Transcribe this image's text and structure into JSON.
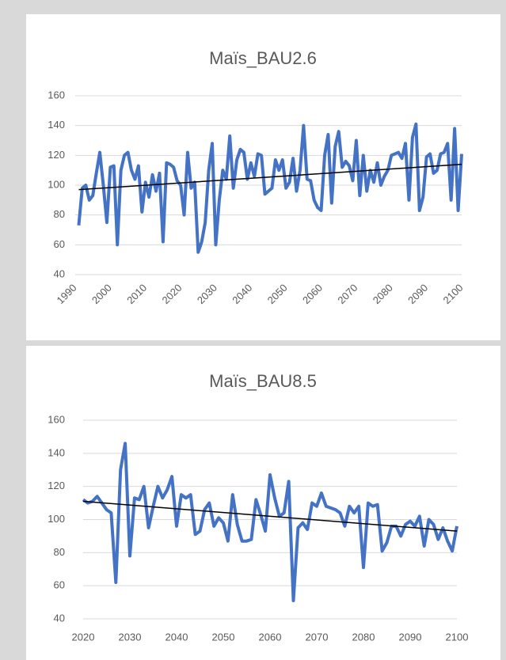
{
  "chart_data": [
    {
      "type": "line",
      "title": "Maïs_BAU2.6",
      "xlim": [
        1990,
        2100
      ],
      "xticks": [
        1990,
        2000,
        2010,
        2020,
        2030,
        2040,
        2050,
        2060,
        2070,
        2080,
        2090,
        2100
      ],
      "ylim": [
        40,
        160
      ],
      "yticks": [
        40,
        60,
        80,
        100,
        120,
        140,
        160
      ],
      "grid": true,
      "x": [
        1991,
        1992,
        1993,
        1994,
        1995,
        1996,
        1997,
        1998,
        1999,
        2000,
        2001,
        2002,
        2003,
        2004,
        2005,
        2006,
        2007,
        2008,
        2009,
        2010,
        2011,
        2012,
        2013,
        2014,
        2015,
        2016,
        2017,
        2018,
        2019,
        2020,
        2021,
        2022,
        2023,
        2024,
        2025,
        2026,
        2027,
        2028,
        2029,
        2030,
        2031,
        2032,
        2033,
        2034,
        2035,
        2036,
        2037,
        2038,
        2039,
        2040,
        2041,
        2042,
        2043,
        2044,
        2045,
        2046,
        2047,
        2048,
        2049,
        2050,
        2051,
        2052,
        2053,
        2054,
        2055,
        2056,
        2057,
        2058,
        2059,
        2060,
        2061,
        2062,
        2063,
        2064,
        2065,
        2066,
        2067,
        2068,
        2069,
        2070,
        2071,
        2072,
        2073,
        2074,
        2075,
        2076,
        2077,
        2078,
        2079,
        2080,
        2081,
        2082,
        2083,
        2084,
        2085,
        2086,
        2087,
        2088,
        2089,
        2090,
        2091,
        2092,
        2093,
        2094,
        2095,
        2096,
        2097,
        2098,
        2099,
        2100
      ],
      "series": [
        {
          "color": "#4472c4",
          "values": [
            73,
            98,
            100,
            90,
            93,
            108,
            122,
            100,
            75,
            112,
            113,
            60,
            110,
            120,
            122,
            110,
            104,
            113,
            82,
            102,
            92,
            107,
            96,
            108,
            62,
            115,
            114,
            112,
            103,
            100,
            80,
            122,
            98,
            102,
            55,
            62,
            75,
            110,
            128,
            60,
            90,
            110,
            104,
            133,
            98,
            117,
            124,
            122,
            104,
            115,
            106,
            121,
            120,
            94,
            96,
            98,
            117,
            110,
            117,
            98,
            102,
            118,
            96,
            110,
            140,
            104,
            103,
            90,
            85,
            83,
            120,
            134,
            88,
            126,
            136,
            112,
            116,
            113,
            103,
            130,
            93,
            120,
            96,
            110,
            102,
            115,
            100,
            106,
            110,
            120,
            121,
            122,
            118,
            128,
            90,
            132,
            141,
            83,
            92,
            119,
            121,
            108,
            110,
            121,
            122,
            128,
            90,
            138,
            83,
            121
          ]
        }
      ],
      "trendline": {
        "color": "#000000",
        "x": [
          1991,
          2100
        ],
        "values": [
          97,
          114
        ]
      }
    },
    {
      "type": "line",
      "title": "Maïs_BAU8.5",
      "xlim": [
        2020,
        2100
      ],
      "xticks": [
        2020,
        2030,
        2040,
        2050,
        2060,
        2070,
        2080,
        2090,
        2100
      ],
      "ylim": [
        40,
        160
      ],
      "yticks": [
        40,
        60,
        80,
        100,
        120,
        140,
        160
      ],
      "grid": true,
      "x": [
        2020,
        2021,
        2022,
        2023,
        2024,
        2025,
        2026,
        2027,
        2028,
        2029,
        2030,
        2031,
        2032,
        2033,
        2034,
        2035,
        2036,
        2037,
        2038,
        2039,
        2040,
        2041,
        2042,
        2043,
        2044,
        2045,
        2046,
        2047,
        2048,
        2049,
        2050,
        2051,
        2052,
        2053,
        2054,
        2055,
        2056,
        2057,
        2058,
        2059,
        2060,
        2061,
        2062,
        2063,
        2064,
        2065,
        2066,
        2067,
        2068,
        2069,
        2070,
        2071,
        2072,
        2073,
        2074,
        2075,
        2076,
        2077,
        2078,
        2079,
        2080,
        2081,
        2082,
        2083,
        2084,
        2085,
        2086,
        2087,
        2088,
        2089,
        2090,
        2091,
        2092,
        2093,
        2094,
        2095,
        2096,
        2097,
        2098,
        2099,
        2100
      ],
      "series": [
        {
          "color": "#4472c4",
          "values": [
            112,
            110,
            111,
            114,
            110,
            106,
            104,
            62,
            130,
            146,
            78,
            113,
            112,
            120,
            95,
            108,
            120,
            113,
            118,
            126,
            96,
            115,
            113,
            115,
            91,
            93,
            106,
            110,
            96,
            101,
            98,
            87,
            115,
            97,
            87,
            87,
            88,
            112,
            103,
            93,
            127,
            113,
            102,
            104,
            123,
            51,
            95,
            98,
            94,
            110,
            108,
            116,
            108,
            107,
            106,
            104,
            96,
            108,
            104,
            108,
            71,
            110,
            108,
            109,
            81,
            86,
            96,
            96,
            90,
            97,
            99,
            96,
            102,
            84,
            100,
            97,
            88,
            95,
            87,
            81,
            96
          ]
        }
      ],
      "trendline": {
        "color": "#000000",
        "x": [
          2020,
          2100
        ],
        "values": [
          111,
          93
        ]
      }
    }
  ]
}
